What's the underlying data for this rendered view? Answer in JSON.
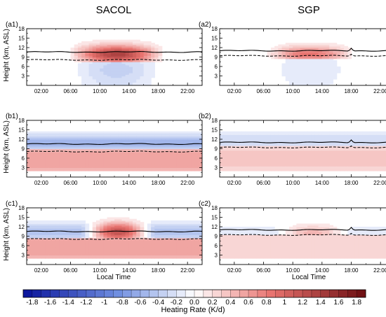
{
  "figure": {
    "column_titles": [
      "SACOL",
      "SGP"
    ],
    "ylabel": "Height (km, ASL)",
    "xlabel": "Local Time",
    "colorbar_label": "Heating Rate (K/d)"
  },
  "chart_data": [
    {
      "type": "heatmap",
      "panel": "(a1)",
      "site": "SACOL",
      "x_ticks": [
        "02:00",
        "06:00",
        "10:00",
        "14:00",
        "18:00",
        "22:00"
      ],
      "x_tick_hours": [
        2,
        6,
        10,
        14,
        18,
        22
      ],
      "xlim": [
        0,
        24
      ],
      "y_ticks": [
        3,
        6,
        9,
        12,
        15,
        18
      ],
      "ylim": [
        0,
        18
      ],
      "solid_line_km": 10.6,
      "dashed_line_km": 8.1,
      "field": {
        "pattern": "daytime",
        "day_hours": [
          5.3,
          19.3
        ],
        "upper": {
          "center_km": 10.0,
          "width_km": 2.0,
          "peak": 1.35,
          "min_height_km": 7.5,
          "max_height_km": 18
        },
        "lower": {
          "center_km": 5.0,
          "width_km": 2.5,
          "peak": -0.35,
          "min_height_km": 0,
          "max_height_km": 7.5
        }
      }
    },
    {
      "type": "heatmap",
      "panel": "(a2)",
      "site": "SGP",
      "x_ticks": [
        "02:00",
        "06:00",
        "10:00",
        "14:00",
        "18:00",
        "22:00"
      ],
      "x_tick_hours": [
        2,
        6,
        10,
        14,
        18,
        22
      ],
      "xlim": [
        0,
        24
      ],
      "y_ticks": [
        3,
        6,
        9,
        12,
        15,
        18
      ],
      "ylim": [
        0,
        18
      ],
      "solid_line_km": 11.0,
      "dashed_line_km": 9.4,
      "spike_hour": 18,
      "field": {
        "pattern": "daytime",
        "day_hours": [
          5.8,
          19.0
        ],
        "upper": {
          "center_km": 10.0,
          "width_km": 1.8,
          "peak": 0.85,
          "min_height_km": 8.5,
          "max_height_km": 18
        },
        "lower": {
          "center_km": 5.0,
          "width_km": 2.5,
          "peak": -0.2,
          "min_height_km": 0,
          "max_height_km": 8.5
        }
      }
    },
    {
      "type": "heatmap",
      "panel": "(b1)",
      "site": "SACOL",
      "x_ticks": [
        "02:00",
        "06:00",
        "10:00",
        "14:00",
        "18:00",
        "22:00"
      ],
      "x_tick_hours": [
        2,
        6,
        10,
        14,
        18,
        22
      ],
      "xlim": [
        0,
        24
      ],
      "y_ticks": [
        3,
        6,
        9,
        12,
        15,
        18
      ],
      "ylim": [
        0,
        18
      ],
      "solid_line_km": 10.5,
      "dashed_line_km": 8.1,
      "field": {
        "pattern": "all-day",
        "upper": {
          "center_km": 11.0,
          "width_km": 2.0,
          "peak": -0.55,
          "min_height_km": 9.0,
          "max_height_km": 18
        },
        "lower": {
          "center_km": 5.5,
          "width_km": 2.8,
          "peak": 0.6,
          "min_height_km": 2.0,
          "max_height_km": 9.0
        }
      }
    },
    {
      "type": "heatmap",
      "panel": "(b2)",
      "site": "SGP",
      "x_ticks": [
        "02:00",
        "06:00",
        "10:00",
        "14:00",
        "18:00",
        "22:00"
      ],
      "x_tick_hours": [
        2,
        6,
        10,
        14,
        18,
        22
      ],
      "xlim": [
        0,
        24
      ],
      "y_ticks": [
        3,
        6,
        9,
        12,
        15,
        18
      ],
      "ylim": [
        0,
        18
      ],
      "solid_line_km": 11.0,
      "dashed_line_km": 9.4,
      "spike_hour": 18,
      "field": {
        "pattern": "all-day",
        "upper": {
          "center_km": 11.5,
          "width_km": 2.0,
          "peak": -0.3,
          "min_height_km": 10.0,
          "max_height_km": 18
        },
        "lower": {
          "center_km": 6.0,
          "width_km": 2.8,
          "peak": 0.35,
          "min_height_km": 2.0,
          "max_height_km": 10.0
        }
      }
    },
    {
      "type": "heatmap",
      "panel": "(c1)",
      "site": "SACOL",
      "x_ticks": [
        "02:00",
        "06:00",
        "10:00",
        "14:00",
        "18:00",
        "22:00"
      ],
      "x_tick_hours": [
        2,
        6,
        10,
        14,
        18,
        22
      ],
      "xlim": [
        0,
        24
      ],
      "y_ticks": [
        3,
        6,
        9,
        12,
        15,
        18
      ],
      "ylim": [
        0,
        18
      ],
      "solid_line_km": 10.5,
      "dashed_line_km": 8.1,
      "field": {
        "pattern": "net",
        "day_hours": [
          7.5,
          17.5
        ],
        "upper": {
          "center_km": 10.5,
          "width_km": 2.0,
          "peak_day": 1.2,
          "peak_night": -0.45,
          "min_height_km": 8.5,
          "max_height_km": 18
        },
        "lower": {
          "center_km": 5.5,
          "width_km": 2.8,
          "peak": 0.6,
          "min_height_km": 2.0,
          "max_height_km": 8.5
        }
      }
    },
    {
      "type": "heatmap",
      "panel": "(c2)",
      "site": "SGP",
      "x_ticks": [
        "02:00",
        "06:00",
        "10:00",
        "14:00",
        "18:00",
        "22:00"
      ],
      "x_tick_hours": [
        2,
        6,
        10,
        14,
        18,
        22
      ],
      "xlim": [
        0,
        24
      ],
      "y_ticks": [
        3,
        6,
        9,
        12,
        15,
        18
      ],
      "ylim": [
        0,
        18
      ],
      "solid_line_km": 11.0,
      "dashed_line_km": 9.4,
      "spike_hour": 18,
      "field": {
        "pattern": "net",
        "day_hours": [
          7.0,
          18.5
        ],
        "upper": {
          "center_km": 10.0,
          "width_km": 1.8,
          "peak_day": 0.45,
          "peak_night": -0.2,
          "min_height_km": 9.5,
          "max_height_km": 18
        },
        "lower": {
          "center_km": 6.0,
          "width_km": 2.8,
          "peak": 0.3,
          "min_height_km": 2.0,
          "max_height_km": 9.5
        }
      }
    }
  ],
  "colorbar": {
    "ticks": [
      "-1.8",
      "-1.6",
      "-1.4",
      "-1.2",
      "-1",
      "-0.8",
      "-0.6",
      "-0.4",
      "-0.2",
      "0.0",
      "0.2",
      "0.4",
      "0.6",
      "0.8",
      "1",
      "1.2",
      "1.4",
      "1.6",
      "1.8"
    ],
    "vmin": -1.9,
    "vmax": 1.9,
    "levels": 38,
    "colors": {
      "min": "#08129a",
      "neg_mid": "#6f8ee0",
      "zero": "#ffffff",
      "pos_mid": "#e8736f",
      "max": "#6b0d10"
    }
  }
}
